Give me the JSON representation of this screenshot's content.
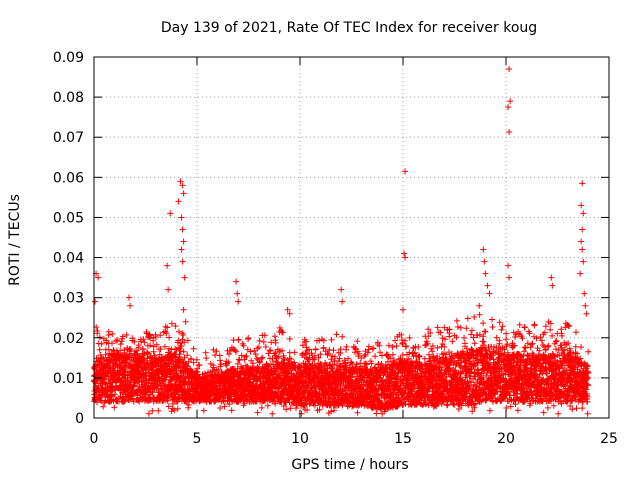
{
  "chart_data": {
    "type": "scatter",
    "title": "Day 139 of 2021, Rate Of TEC Index for receiver koug",
    "xlabel": "GPS time / hours",
    "ylabel": "ROTI / TECUs",
    "xlim": [
      0,
      25
    ],
    "ylim": [
      0,
      0.09
    ],
    "xticks": [
      "0",
      "5",
      "10",
      "15",
      "20",
      "25"
    ],
    "yticks": [
      "0",
      "0.01",
      "0.02",
      "0.03",
      "0.04",
      "0.05",
      "0.06",
      "0.07",
      "0.08",
      "0.09"
    ],
    "grid": true,
    "marker": "plus",
    "color": "#ff0000",
    "notable_points": [
      {
        "x": 0.1,
        "y": 0.036
      },
      {
        "x": 0.2,
        "y": 0.035
      },
      {
        "x": 0.05,
        "y": 0.029
      },
      {
        "x": 1.7,
        "y": 0.03
      },
      {
        "x": 1.75,
        "y": 0.028
      },
      {
        "x": 3.7,
        "y": 0.051
      },
      {
        "x": 3.6,
        "y": 0.032
      },
      {
        "x": 3.55,
        "y": 0.038
      },
      {
        "x": 4.2,
        "y": 0.059
      },
      {
        "x": 4.3,
        "y": 0.058
      },
      {
        "x": 4.35,
        "y": 0.056
      },
      {
        "x": 4.1,
        "y": 0.054
      },
      {
        "x": 4.25,
        "y": 0.05
      },
      {
        "x": 4.3,
        "y": 0.047
      },
      {
        "x": 4.35,
        "y": 0.044
      },
      {
        "x": 4.25,
        "y": 0.042
      },
      {
        "x": 4.3,
        "y": 0.039
      },
      {
        "x": 4.4,
        "y": 0.035
      },
      {
        "x": 4.35,
        "y": 0.027
      },
      {
        "x": 4.45,
        "y": 0.024
      },
      {
        "x": 6.9,
        "y": 0.034
      },
      {
        "x": 6.95,
        "y": 0.031
      },
      {
        "x": 7.0,
        "y": 0.029
      },
      {
        "x": 9.4,
        "y": 0.027
      },
      {
        "x": 9.5,
        "y": 0.026
      },
      {
        "x": 12.0,
        "y": 0.032
      },
      {
        "x": 12.05,
        "y": 0.029
      },
      {
        "x": 15.1,
        "y": 0.0615
      },
      {
        "x": 15.05,
        "y": 0.041
      },
      {
        "x": 15.1,
        "y": 0.04
      },
      {
        "x": 15.0,
        "y": 0.027
      },
      {
        "x": 18.9,
        "y": 0.042
      },
      {
        "x": 18.95,
        "y": 0.039
      },
      {
        "x": 19.0,
        "y": 0.036
      },
      {
        "x": 19.1,
        "y": 0.033
      },
      {
        "x": 18.7,
        "y": 0.028
      },
      {
        "x": 19.2,
        "y": 0.031
      },
      {
        "x": 20.15,
        "y": 0.087
      },
      {
        "x": 20.2,
        "y": 0.079
      },
      {
        "x": 20.1,
        "y": 0.0775
      },
      {
        "x": 20.15,
        "y": 0.0713
      },
      {
        "x": 20.1,
        "y": 0.038
      },
      {
        "x": 20.15,
        "y": 0.035
      },
      {
        "x": 22.2,
        "y": 0.035
      },
      {
        "x": 22.25,
        "y": 0.033
      },
      {
        "x": 23.7,
        "y": 0.0585
      },
      {
        "x": 23.65,
        "y": 0.053
      },
      {
        "x": 23.75,
        "y": 0.051
      },
      {
        "x": 23.7,
        "y": 0.047
      },
      {
        "x": 23.65,
        "y": 0.044
      },
      {
        "x": 23.7,
        "y": 0.042
      },
      {
        "x": 23.75,
        "y": 0.039
      },
      {
        "x": 23.6,
        "y": 0.036
      },
      {
        "x": 23.8,
        "y": 0.031
      },
      {
        "x": 23.85,
        "y": 0.028
      },
      {
        "x": 23.9,
        "y": 0.026
      }
    ],
    "band_profile": {
      "hours": [
        0,
        1,
        2,
        3,
        4,
        5,
        6,
        7,
        8,
        9,
        10,
        11,
        12,
        13,
        14,
        15,
        16,
        17,
        18,
        19,
        20,
        21,
        22,
        23,
        24
      ],
      "typical_low": [
        0.004,
        0.004,
        0.004,
        0.004,
        0.004,
        0.004,
        0.004,
        0.004,
        0.004,
        0.004,
        0.003,
        0.003,
        0.003,
        0.003,
        0.002,
        0.003,
        0.003,
        0.003,
        0.003,
        0.004,
        0.004,
        0.004,
        0.004,
        0.004,
        0.004
      ],
      "typical_high": [
        0.013,
        0.016,
        0.015,
        0.014,
        0.016,
        0.01,
        0.011,
        0.012,
        0.012,
        0.014,
        0.013,
        0.013,
        0.013,
        0.012,
        0.012,
        0.014,
        0.014,
        0.015,
        0.016,
        0.017,
        0.016,
        0.015,
        0.015,
        0.016,
        0.013
      ],
      "spread_max": [
        0.024,
        0.022,
        0.021,
        0.022,
        0.025,
        0.016,
        0.018,
        0.02,
        0.02,
        0.024,
        0.02,
        0.02,
        0.022,
        0.019,
        0.019,
        0.022,
        0.022,
        0.023,
        0.026,
        0.026,
        0.024,
        0.023,
        0.024,
        0.025,
        0.022
      ]
    }
  }
}
